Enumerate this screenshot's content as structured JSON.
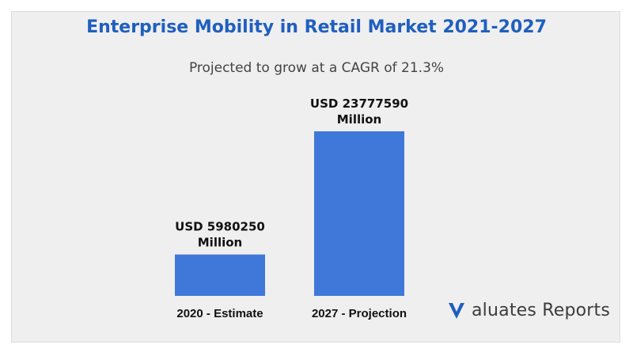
{
  "chart_data": {
    "type": "bar",
    "title": "Enterprise Mobility in Retail Market 2021-2027",
    "subtitle": "Projected to grow at a CAGR of 21.3%",
    "categories": [
      "2020 - Estimate",
      "2027 - Projection"
    ],
    "values": [
      5980250,
      23777590
    ],
    "data_labels": [
      [
        "USD 5980250",
        "Million"
      ],
      [
        "USD 23777590",
        "Million"
      ]
    ],
    "unit": "USD Million",
    "ylim": [
      0,
      23777590
    ],
    "bar_color": "#3f78d8",
    "title_color": "#1f5fbf",
    "grid": false,
    "legend": "none"
  },
  "brand": {
    "logo_letter": "V",
    "logo_text": "aluates Reports",
    "logo_icon": "valuates-v-logo",
    "logo_color": "#1f5fbf"
  }
}
